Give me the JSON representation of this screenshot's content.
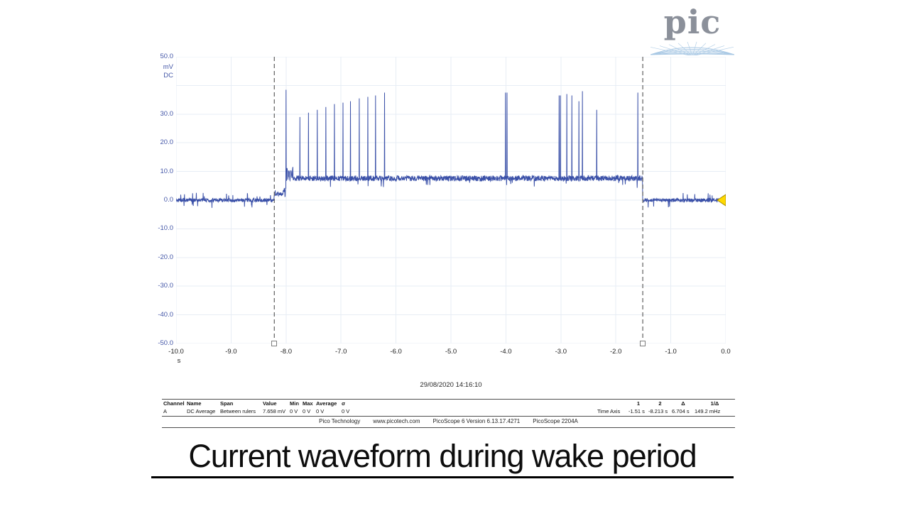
{
  "slide": {
    "title": "Current waveform during wake period"
  },
  "logo": {
    "text": "pic",
    "text_color": "#8b909a",
    "wave_color": "#a8c8e4"
  },
  "scope": {
    "timestamp": "29/08/2020 14:16:10",
    "footer_items": [
      "Pico Technology",
      "www.picotech.com",
      "PicoScope 6 Version 6.13.17.4271",
      "PicoScope 2204A"
    ],
    "measurements": {
      "headers": [
        "Channel",
        "Name",
        "Span",
        "Value",
        "Min",
        "Max",
        "Average",
        "σ"
      ],
      "row": [
        "A",
        "DC Average",
        "Between rulers",
        "7.658 mV",
        "0 V",
        "0 V",
        "0 V",
        "0 V"
      ]
    },
    "time_axis_panel": {
      "headers": [
        "1",
        "2",
        "Δ",
        "1/Δ"
      ],
      "row_label": "Time Axis",
      "values": [
        "-1.51 s",
        "-8.213 s",
        "6.704 s",
        "149.2 mHz"
      ]
    }
  },
  "chart_data": {
    "type": "line",
    "title": "",
    "xlabel": "s",
    "ylabel": "mV DC",
    "x_unit": "s",
    "y_units": [
      "mV",
      "DC"
    ],
    "xlim": [
      -10,
      0
    ],
    "ylim": [
      -50,
      50
    ],
    "grid": true,
    "grid_color": "#e7edf5",
    "x_ticks": [
      {
        "v": -10,
        "label": "-10.0"
      },
      {
        "v": -9,
        "label": "-9.0"
      },
      {
        "v": -8,
        "label": "-8.0"
      },
      {
        "v": -7,
        "label": "-7.0"
      },
      {
        "v": -6,
        "label": "-6.0"
      },
      {
        "v": -5,
        "label": "-5.0"
      },
      {
        "v": -4,
        "label": "-4.0"
      },
      {
        "v": -3,
        "label": "-3.0"
      },
      {
        "v": -2,
        "label": "-2.0"
      },
      {
        "v": -1,
        "label": "-1.0"
      },
      {
        "v": 0,
        "label": "0.0"
      }
    ],
    "y_ticks": [
      {
        "v": 50,
        "label": "50.0"
      },
      {
        "v": 30,
        "label": "30.0"
      },
      {
        "v": 20,
        "label": "20.0"
      },
      {
        "v": 10,
        "label": "10.0"
      },
      {
        "v": 0,
        "label": "0.0"
      },
      {
        "v": -10,
        "label": "-10.0"
      },
      {
        "v": -20,
        "label": "-20.0"
      },
      {
        "v": -30,
        "label": "-30.0"
      },
      {
        "v": -40,
        "label": "-40.0"
      },
      {
        "v": -50,
        "label": "-50.0"
      }
    ],
    "y_tick_color": "#4457a8",
    "x_tick_color": "#1c1c1c",
    "waveform": {
      "color": "#3a50a8",
      "baseline_mv": 0,
      "active_mv": 7.6,
      "active_start_s": -8.213,
      "active_end_s": -1.513,
      "pre_steps": [
        {
          "t": -8.216,
          "mv": 2.1
        },
        {
          "t": -8.052,
          "mv": 3.6
        }
      ],
      "spikes": [
        {
          "t": -8.0,
          "mv": 38.5
        },
        {
          "t": -7.748,
          "mv": 29.0
        },
        {
          "t": -7.592,
          "mv": 30.5
        },
        {
          "t": -7.432,
          "mv": 31.5
        },
        {
          "t": -7.276,
          "mv": 32.5
        },
        {
          "t": -7.12,
          "mv": 33.5
        },
        {
          "t": -6.964,
          "mv": 34.0
        },
        {
          "t": -6.828,
          "mv": 34.5
        },
        {
          "t": -6.668,
          "mv": 35.5
        },
        {
          "t": -6.512,
          "mv": 36.0
        },
        {
          "t": -6.372,
          "mv": 36.5
        },
        {
          "t": -6.208,
          "mv": 37.5
        },
        {
          "t": -4.008,
          "mv": 37.5
        },
        {
          "t": -3.98,
          "mv": 37.5
        },
        {
          "t": -3.032,
          "mv": 36.5
        },
        {
          "t": -3.008,
          "mv": 36.5
        },
        {
          "t": -2.892,
          "mv": 37.0
        },
        {
          "t": -2.8,
          "mv": 36.5
        },
        {
          "t": -2.672,
          "mv": 34.5
        },
        {
          "t": -2.608,
          "mv": 38.0
        },
        {
          "t": -2.348,
          "mv": 31.5
        },
        {
          "t": -1.6,
          "mv": 37.5
        }
      ]
    },
    "rulers": {
      "color": "#6a6a6a",
      "positions_s": [
        -8.213,
        -1.51
      ]
    },
    "trigger_marker": {
      "color": "#ffd900",
      "level_mv": 0
    }
  }
}
